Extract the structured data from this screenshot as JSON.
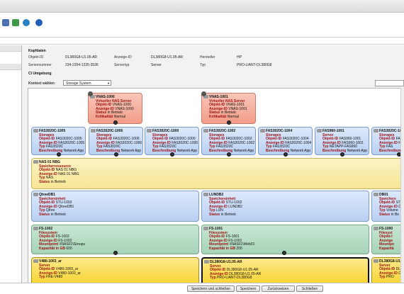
{
  "kopfdaten": {
    "title": "Kopfdaten",
    "fields": [
      {
        "label": "Objekt-ID",
        "value": "DL380G8-U1.05-AR"
      },
      {
        "label": "Anzeige-ID",
        "value": "DL380G8-U1.05-AR"
      },
      {
        "label": "Hersteller",
        "value": "HP"
      },
      {
        "label": "Seriennummer",
        "value": "234-2354-1235-3536"
      },
      {
        "label": "Servertyp",
        "value": "Server"
      },
      {
        "label": "Typ",
        "value": "PRO-LIANT-DL380G8"
      }
    ]
  },
  "ci_umgebung": {
    "title": "CI Umgebung",
    "kontext_label": "Kontext wählen",
    "kontext_value": "Storage System"
  },
  "nas_cards": [
    {
      "title": "VNAS-1000",
      "lines": [
        {
          "k": "Virtueller NAS Server",
          "v": ""
        },
        {
          "k": "Objekt-ID",
          "v": "VNAS-1000"
        },
        {
          "k": "Anzeige-ID",
          "v": "VNAS-1000"
        },
        {
          "k": "Status",
          "v": "in Betrieb"
        },
        {
          "k": "Kritikalität",
          "v": "Normal"
        }
      ]
    },
    {
      "title": "VNAS-1001",
      "lines": [
        {
          "k": "Virtueller NAS Server",
          "v": ""
        },
        {
          "k": "Objekt-ID",
          "v": "VNAS-1001"
        },
        {
          "k": "Anzeige-ID",
          "v": "VNAS-1001"
        },
        {
          "k": "Status",
          "v": "in Betrieb"
        },
        {
          "k": "Kritikalität",
          "v": "Normal"
        }
      ]
    }
  ],
  "storage_cards": [
    {
      "title": "FAS3020C-1005",
      "lines": [
        {
          "k": "Storages",
          "v": ""
        },
        {
          "k": "Objekt-ID",
          "v": "FAS3020C-1005"
        },
        {
          "k": "Anzeige-ID",
          "v": "FAS3020C-1005"
        },
        {
          "k": "Typ",
          "v": "FAS3020C"
        },
        {
          "k": "Beschreibung",
          "v": "Network App"
        }
      ]
    },
    {
      "title": "FAS3020C-1006",
      "lines": [
        {
          "k": "Storages",
          "v": ""
        },
        {
          "k": "Objekt-ID",
          "v": "FAS3020C-1006"
        },
        {
          "k": "Anzeige-ID",
          "v": "FAS3020C-1006"
        },
        {
          "k": "Typ",
          "v": "FAS3020C"
        },
        {
          "k": "Beschreibung",
          "v": "Network App"
        }
      ]
    },
    {
      "title": "FAS3020C-1000",
      "lines": [
        {
          "k": "Storages",
          "v": ""
        },
        {
          "k": "Objekt-ID",
          "v": "FAS3020C-1000"
        },
        {
          "k": "Anzeige-ID",
          "v": "FAS3020C-1000"
        },
        {
          "k": "Typ",
          "v": "FAS3020C"
        },
        {
          "k": "Beschreibung",
          "v": "Network App"
        }
      ]
    },
    {
      "title": "FAS3020C-1002",
      "lines": [
        {
          "k": "Storages",
          "v": ""
        },
        {
          "k": "Objekt-ID",
          "v": "FAS3020C-1002"
        },
        {
          "k": "Anzeige-ID",
          "v": "FAS3020C-1002"
        },
        {
          "k": "Typ",
          "v": "FAS3020C"
        },
        {
          "k": "Beschreibung",
          "v": "Network App"
        }
      ]
    },
    {
      "title": "FAS3020C-1004",
      "lines": [
        {
          "k": "Storages",
          "v": ""
        },
        {
          "k": "Objekt-ID",
          "v": "FAS3020C-1004"
        },
        {
          "k": "Anzeige-ID",
          "v": "FAS3020C-1004"
        },
        {
          "k": "Typ",
          "v": "FAS3020C"
        },
        {
          "k": "Beschreibung",
          "v": "Network App"
        }
      ]
    },
    {
      "title": "FAS960-1001",
      "lines": [
        {
          "k": "Server",
          "v": ""
        },
        {
          "k": "Objekt-ID",
          "v": "FAS960-1001"
        },
        {
          "k": "Anzeige-ID",
          "v": "FAS960-1001"
        },
        {
          "k": "Typ",
          "v": "NETAPP-FAS960"
        },
        {
          "k": "Beschreibung",
          "v": "Network App"
        }
      ]
    },
    {
      "title": "FAS3020C-1003",
      "lines": [
        {
          "k": "Storages",
          "v": ""
        },
        {
          "k": "Objekt-ID",
          "v": "FAS"
        },
        {
          "k": "Anzeige-ID",
          "v": "FA"
        },
        {
          "k": "Typ",
          "v": "FAS"
        },
        {
          "k": "Beschreibung",
          "v": ""
        }
      ]
    }
  ],
  "nas_wide": {
    "title": "NAS 01 NBG",
    "lines": [
      {
        "k": "Speicherressource",
        "v": ""
      },
      {
        "k": "Objekt-ID",
        "v": "NAS 01 NBG"
      },
      {
        "k": "Anzeige-ID",
        "v": "NAS 01 NBG"
      },
      {
        "k": "Typ",
        "v": "NAS"
      },
      {
        "k": "Status",
        "v": "in Betrieb"
      }
    ]
  },
  "speicher_cards": [
    {
      "title": "QtreeDB1",
      "lines": [
        {
          "k": "Speichereinheit",
          "v": ""
        },
        {
          "k": "Objekt-ID",
          "v": "STU-1003"
        },
        {
          "k": "Anzeige-ID",
          "v": "QtreeDB1"
        },
        {
          "k": "Typ",
          "v": "Qtree"
        },
        {
          "k": "Status",
          "v": "in Betrieb"
        }
      ]
    },
    {
      "title": "LUNDB2",
      "lines": [
        {
          "k": "Speichereinheit",
          "v": ""
        },
        {
          "k": "Objekt-ID",
          "v": "STU-1002"
        },
        {
          "k": "Anzeige-ID",
          "v": "LUNDB2"
        },
        {
          "k": "Typ",
          "v": "LUN"
        },
        {
          "k": "Status",
          "v": "in Betrieb"
        }
      ]
    },
    {
      "title": "DB01",
      "lines": [
        {
          "k": "Speichere",
          "v": ""
        },
        {
          "k": "Objekt-ID",
          "v": "ST"
        },
        {
          "k": "Anzeige-ID",
          "v": "DB"
        },
        {
          "k": "Typ",
          "v": "Volume"
        },
        {
          "k": "Status",
          "v": "in Be"
        }
      ]
    }
  ],
  "fs_cards": [
    {
      "title": "FS-1002",
      "lines": [
        {
          "k": "Filesystem",
          "v": ""
        },
        {
          "k": "Objekt-ID",
          "v": "FS-1002"
        },
        {
          "k": "Anzeige-ID",
          "v": "FS-1002"
        },
        {
          "k": "Mountpoint",
          "v": "\\\\NAS01\\Groups"
        },
        {
          "k": "Kapazität in GB",
          "v": "600"
        }
      ]
    },
    {
      "title": "FS-1001",
      "lines": [
        {
          "k": "Filesystem",
          "v": ""
        },
        {
          "k": "Objekt-ID",
          "v": "FS-1001"
        },
        {
          "k": "Anzeige-ID",
          "v": "FS-1001"
        },
        {
          "k": "Mountpoint",
          "v": "\\\\NAS01\\Web01"
        },
        {
          "k": "Kapazität in GB",
          "v": "200"
        }
      ]
    },
    {
      "title": "FS-1000",
      "lines": [
        {
          "k": "Filesyst",
          "v": ""
        },
        {
          "k": "Objekt-I",
          "v": ""
        },
        {
          "k": "Anzeige",
          "v": ""
        },
        {
          "k": "Mountpo",
          "v": ""
        },
        {
          "k": "Kapazitä",
          "v": ""
        }
      ]
    }
  ],
  "server_cards": [
    {
      "title": "V480-1003_ar",
      "lines": [
        {
          "k": "Server",
          "v": ""
        },
        {
          "k": "Objekt-ID",
          "v": "V480-1003_ar"
        },
        {
          "k": "Anzeige-ID",
          "v": "V480-1003_ar"
        },
        {
          "k": "Typ",
          "v": "FRE-V480"
        }
      ]
    },
    {
      "title": "DL380G8-U1.05-AR",
      "lines": [
        {
          "k": "Server",
          "v": ""
        },
        {
          "k": "Objekt-ID",
          "v": "DL380G8-U1.05-AR"
        },
        {
          "k": "Anzeige-ID",
          "v": "DL380G8-U1.05-AR"
        },
        {
          "k": "Typ",
          "v": "PRO-LIANT-DL380G8"
        }
      ]
    },
    {
      "title": "DL380G8-U1.05-AR",
      "lines": [
        {
          "k": "Server",
          "v": ""
        },
        {
          "k": "Objekt-ID",
          "v": "DL"
        },
        {
          "k": "Anzeige-ID",
          "v": "DL"
        },
        {
          "k": "Typ",
          "v": "PRO"
        }
      ]
    }
  ],
  "buttons": {
    "save_close": "Speichern und schließen",
    "save": "Speichern",
    "reset": "Zurücksetzen",
    "close": "Schließen"
  },
  "colors": {
    "nas": "#f19d88",
    "storage": "#b9d0f3",
    "speicher": "#f6e694",
    "fs": "#a6d3b7",
    "server": "#f7d431"
  }
}
